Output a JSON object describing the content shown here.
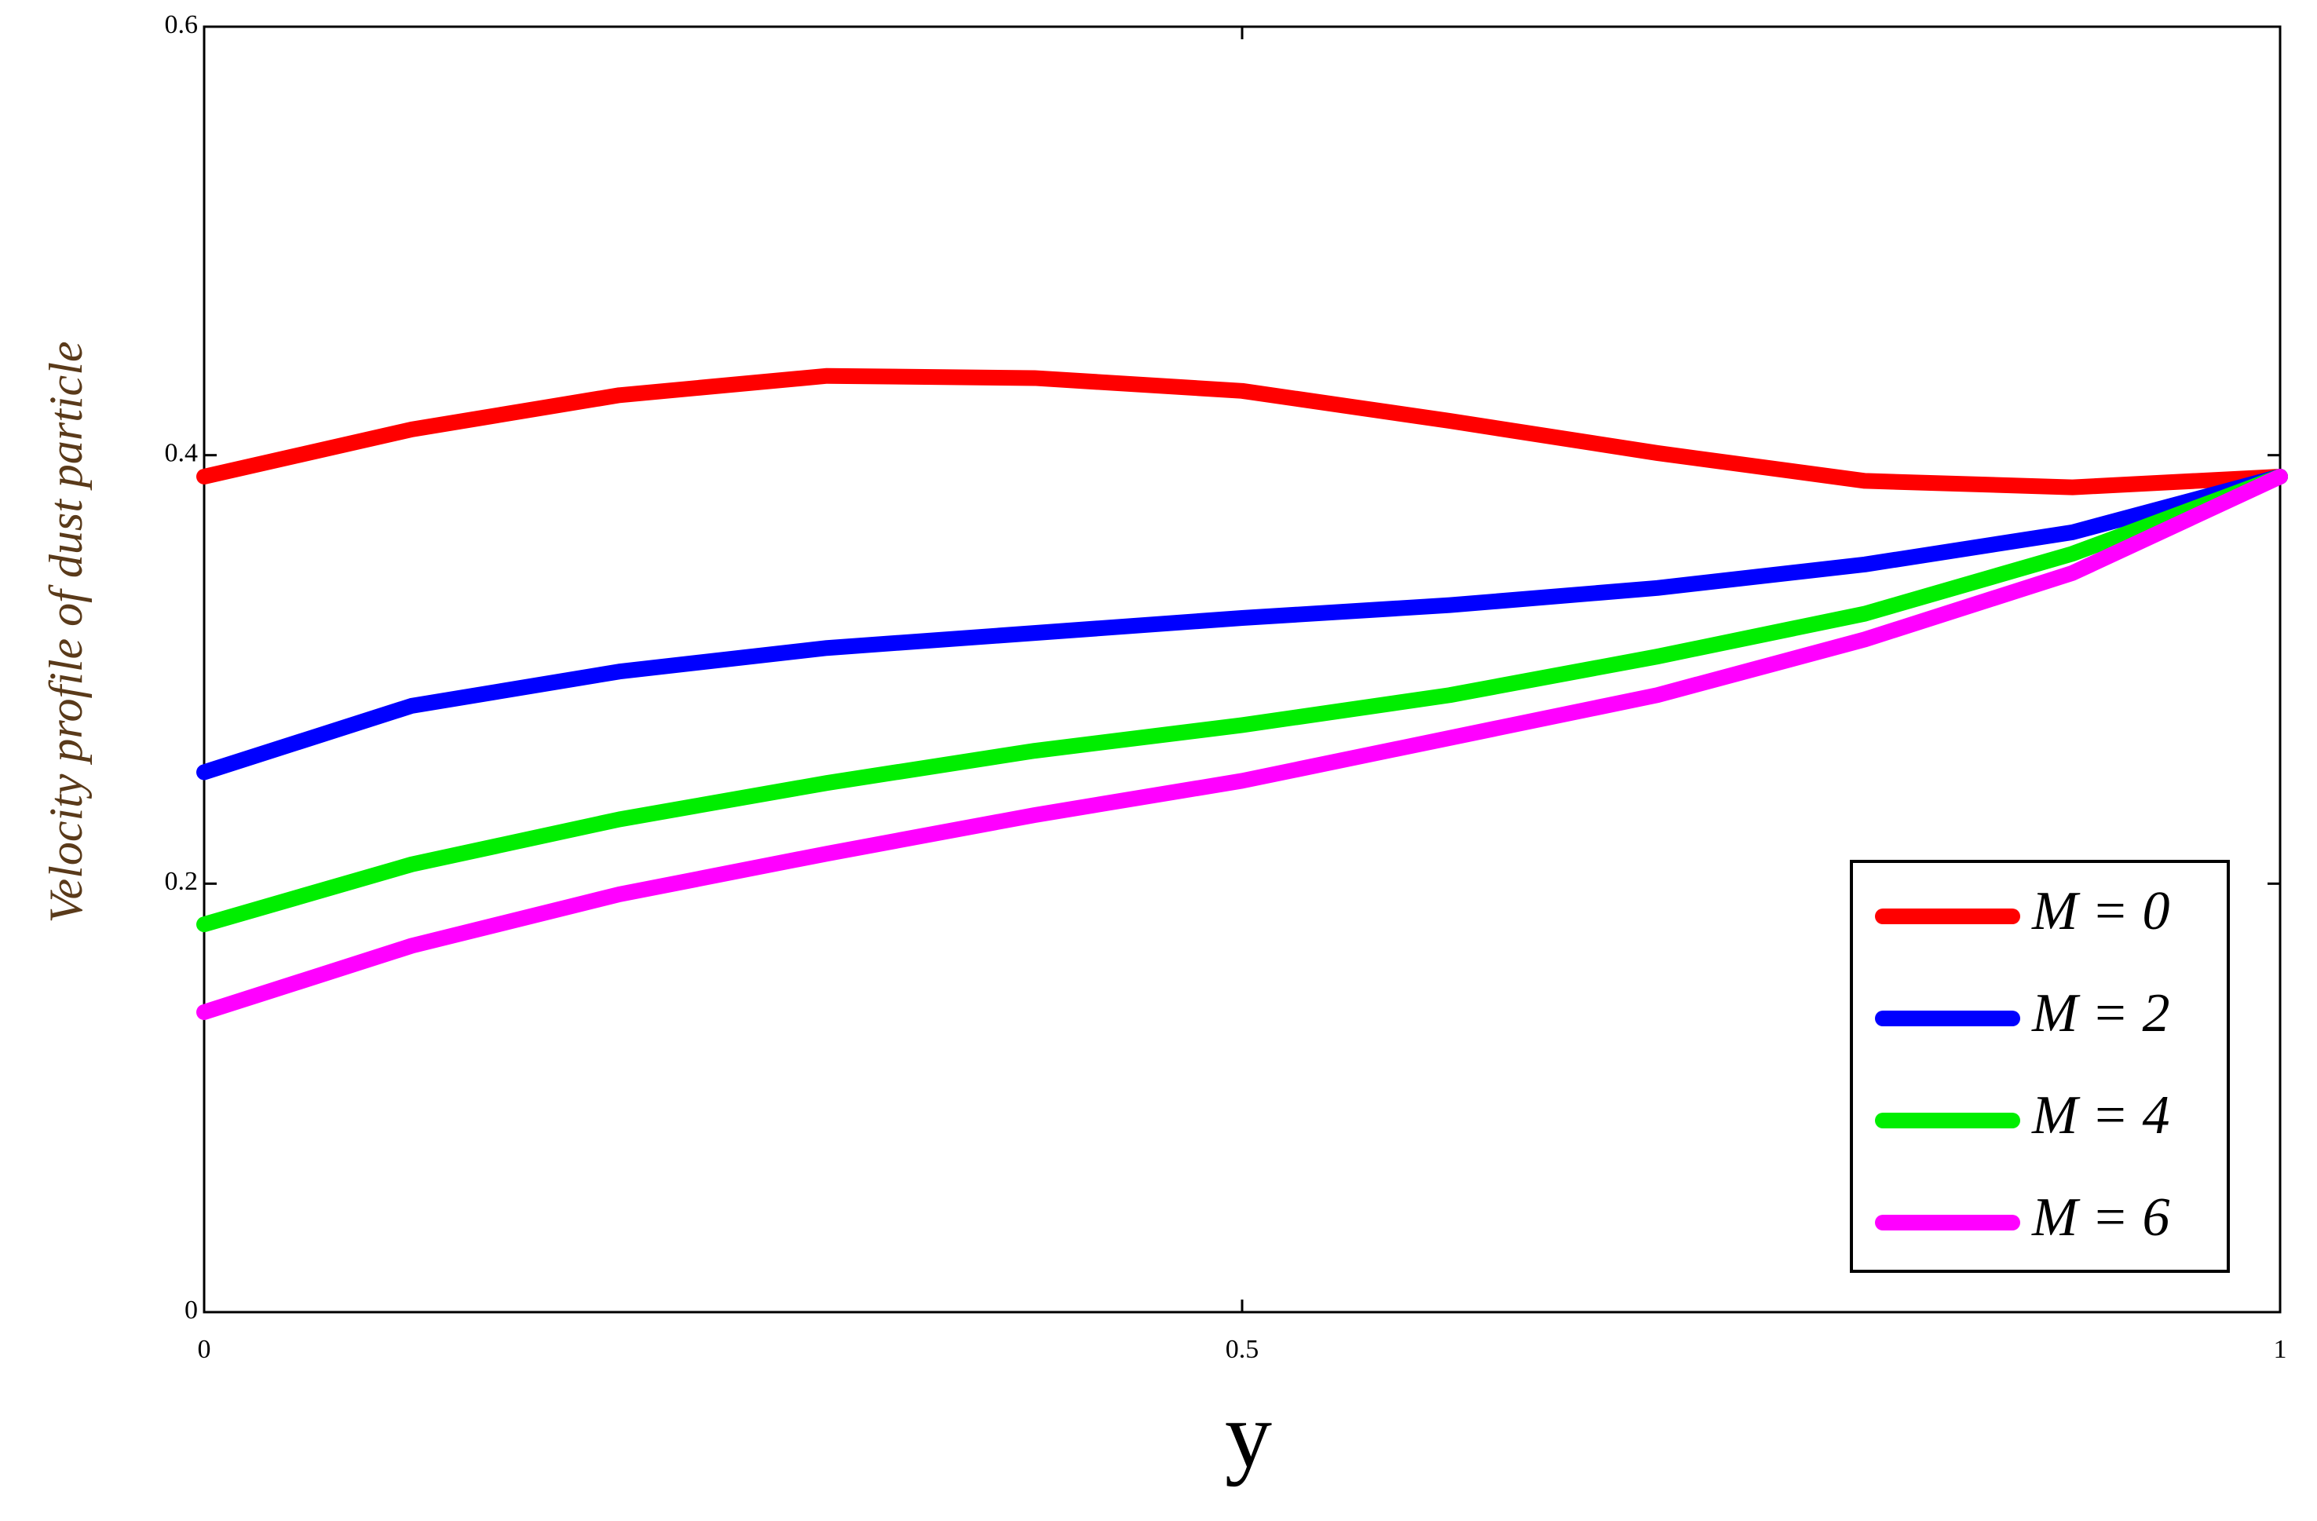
{
  "chart_data": {
    "type": "line",
    "x_label": "y",
    "y_label": "Velocity profile of dust  particle",
    "x": [
      0,
      0.1,
      0.2,
      0.3,
      0.4,
      0.5,
      0.6,
      0.7,
      0.8,
      0.9,
      1
    ],
    "series": [
      {
        "name": "M = 0",
        "color": "#ff0000",
        "values": [
          0.39,
          0.412,
          0.428,
          0.437,
          0.436,
          0.43,
          0.416,
          0.401,
          0.388,
          0.385,
          0.39
        ]
      },
      {
        "name": "M = 2",
        "color": "#0000ff",
        "values": [
          0.252,
          0.283,
          0.299,
          0.31,
          0.317,
          0.324,
          0.33,
          0.338,
          0.349,
          0.364,
          0.39
        ]
      },
      {
        "name": "M = 4",
        "color": "#00ee00",
        "values": [
          0.181,
          0.209,
          0.23,
          0.247,
          0.262,
          0.274,
          0.288,
          0.306,
          0.326,
          0.354,
          0.39
        ]
      },
      {
        "name": "M = 6",
        "color": "#ff00ff",
        "values": [
          0.14,
          0.171,
          0.195,
          0.214,
          0.232,
          0.248,
          0.268,
          0.288,
          0.314,
          0.345,
          0.39
        ]
      }
    ],
    "xlim": [
      0,
      1
    ],
    "xticks": [
      0,
      0.5,
      1
    ],
    "ylim": [
      0,
      0.6
    ],
    "yticks": [
      0,
      0.2,
      0.4,
      0.6
    ],
    "legend": "lower right"
  }
}
